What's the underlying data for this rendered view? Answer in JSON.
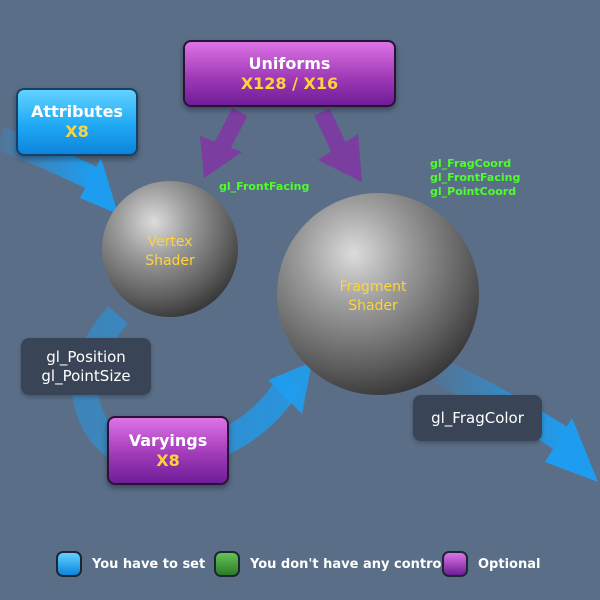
{
  "uniforms": {
    "title": "Uniforms",
    "count": "X128 / X16"
  },
  "attributes": {
    "title": "Attributes",
    "count": "X8"
  },
  "varyings": {
    "title": "Varyings",
    "count": "X8"
  },
  "vertex_shader": {
    "line1": "Vertex",
    "line2": "Shader"
  },
  "fragment_shader": {
    "line1": "Fragment",
    "line2": "Shader"
  },
  "vertex_outputs": {
    "line1": "gl_Position",
    "line2": "gl_PointSize"
  },
  "fragment_output": "gl_FragColor",
  "front_facing_label": "gl_FrontFacing",
  "fragment_builtins": {
    "line1": "gl_FragCoord",
    "line2": "gl_FrontFacing",
    "line3": "gl_PointCoord"
  },
  "legend": {
    "blue": "You have to set",
    "green": "You don't have any control",
    "purple": "Optional"
  },
  "colors": {
    "background": "#5a6e88",
    "blue": "#1fa9f4",
    "green": "#3d9a35",
    "purple": "#a13bb8",
    "builtin_text": "#4dff2a",
    "count_text": "#ffd33a"
  }
}
